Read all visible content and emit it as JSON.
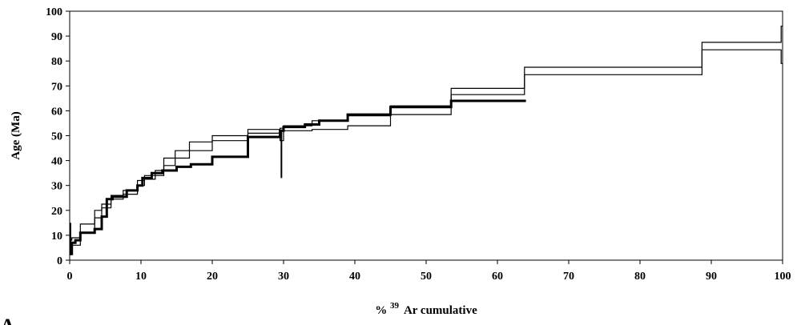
{
  "chart_data": {
    "type": "line",
    "xlabel_prefix": "%",
    "xlabel_sup": "39",
    "xlabel_rest": "Ar cumulative",
    "ylabel": "Age (Ma)",
    "panel_label": "A",
    "xlim": [
      0,
      100
    ],
    "ylim": [
      0,
      100
    ],
    "x_ticks": [
      0,
      10,
      20,
      30,
      40,
      50,
      60,
      70,
      80,
      90,
      100
    ],
    "y_ticks": [
      0,
      10,
      20,
      30,
      40,
      50,
      60,
      70,
      80,
      90,
      100
    ],
    "grid": false,
    "series": [
      {
        "style": "thin-upper",
        "steps": [
          {
            "x0": 0.0,
            "x1": 0.3,
            "y": 8
          },
          {
            "x0": 0.3,
            "x1": 1.5,
            "y": 9
          },
          {
            "x0": 1.5,
            "x1": 3.5,
            "y": 14.5
          },
          {
            "x0": 3.5,
            "x1": 4.5,
            "y": 20
          },
          {
            "x0": 4.5,
            "x1": 5.8,
            "y": 22.5
          },
          {
            "x0": 5.8,
            "x1": 7.5,
            "y": 26
          },
          {
            "x0": 7.5,
            "x1": 9.5,
            "y": 28
          },
          {
            "x0": 9.5,
            "x1": 10.5,
            "y": 32
          },
          {
            "x0": 10.5,
            "x1": 12.0,
            "y": 34
          },
          {
            "x0": 12.0,
            "x1": 13.2,
            "y": 36
          },
          {
            "x0": 13.2,
            "x1": 14.8,
            "y": 41
          },
          {
            "x0": 14.8,
            "x1": 16.8,
            "y": 44
          },
          {
            "x0": 16.8,
            "x1": 20.0,
            "y": 47.5
          },
          {
            "x0": 20.0,
            "x1": 25.0,
            "y": 50
          },
          {
            "x0": 25.0,
            "x1": 29.5,
            "y": 52.5
          },
          {
            "x0": 29.5,
            "x1": 30.0,
            "y": 53
          },
          {
            "x0": 30.0,
            "x1": 34.0,
            "y": 54
          },
          {
            "x0": 34.0,
            "x1": 39.0,
            "y": 56
          },
          {
            "x0": 39.0,
            "x1": 45.0,
            "y": 58
          },
          {
            "x0": 45.0,
            "x1": 53.5,
            "y": 62
          },
          {
            "x0": 53.5,
            "x1": 63.8,
            "y": 69
          },
          {
            "x0": 63.8,
            "x1": 88.7,
            "y": 77.5
          },
          {
            "x0": 88.7,
            "x1": 99.8,
            "y": 87.5
          },
          {
            "x0": 99.8,
            "x1": 100.0,
            "y": 94
          }
        ]
      },
      {
        "style": "thin-lower",
        "steps": [
          {
            "x0": 0.0,
            "x1": 0.3,
            "y": 4
          },
          {
            "x0": 0.3,
            "x1": 1.5,
            "y": 6
          },
          {
            "x0": 1.5,
            "x1": 3.5,
            "y": 11
          },
          {
            "x0": 3.5,
            "x1": 4.5,
            "y": 17
          },
          {
            "x0": 4.5,
            "x1": 5.8,
            "y": 21
          },
          {
            "x0": 5.8,
            "x1": 7.5,
            "y": 24.5
          },
          {
            "x0": 7.5,
            "x1": 9.5,
            "y": 26.5
          },
          {
            "x0": 9.5,
            "x1": 10.5,
            "y": 30
          },
          {
            "x0": 10.5,
            "x1": 12.0,
            "y": 32.5
          },
          {
            "x0": 12.0,
            "x1": 13.2,
            "y": 34
          },
          {
            "x0": 13.2,
            "x1": 14.8,
            "y": 38
          },
          {
            "x0": 14.8,
            "x1": 16.8,
            "y": 41
          },
          {
            "x0": 16.8,
            "x1": 20.0,
            "y": 44
          },
          {
            "x0": 20.0,
            "x1": 25.0,
            "y": 48
          },
          {
            "x0": 25.0,
            "x1": 29.5,
            "y": 51
          },
          {
            "x0": 29.5,
            "x1": 30.0,
            "y": 48
          },
          {
            "x0": 30.0,
            "x1": 34.0,
            "y": 52
          },
          {
            "x0": 34.0,
            "x1": 39.0,
            "y": 52.5
          },
          {
            "x0": 39.0,
            "x1": 45.0,
            "y": 54
          },
          {
            "x0": 45.0,
            "x1": 53.5,
            "y": 58.5
          },
          {
            "x0": 53.5,
            "x1": 63.8,
            "y": 66.5
          },
          {
            "x0": 63.8,
            "x1": 88.7,
            "y": 74.5
          },
          {
            "x0": 88.7,
            "x1": 99.8,
            "y": 84.5
          },
          {
            "x0": 99.8,
            "x1": 100.0,
            "y": 79
          }
        ]
      },
      {
        "style": "thick",
        "steps": [
          {
            "x0": 0.0,
            "x1": 0.3,
            "y": 2.5
          },
          {
            "x0": 0.3,
            "x1": 0.8,
            "y": 7
          },
          {
            "x0": 0.8,
            "x1": 1.5,
            "y": 8
          },
          {
            "x0": 1.5,
            "x1": 3.5,
            "y": 11
          },
          {
            "x0": 3.5,
            "x1": 4.5,
            "y": 12.5
          },
          {
            "x0": 4.5,
            "x1": 5.2,
            "y": 17.5
          },
          {
            "x0": 5.2,
            "x1": 6.0,
            "y": 24.5
          },
          {
            "x0": 6.0,
            "x1": 8.0,
            "y": 25.5
          },
          {
            "x0": 8.0,
            "x1": 9.5,
            "y": 28
          },
          {
            "x0": 9.5,
            "x1": 10.2,
            "y": 30
          },
          {
            "x0": 10.2,
            "x1": 11.5,
            "y": 33
          },
          {
            "x0": 11.5,
            "x1": 13.0,
            "y": 35
          },
          {
            "x0": 13.0,
            "x1": 15.0,
            "y": 36
          },
          {
            "x0": 15.0,
            "x1": 17.0,
            "y": 37.5
          },
          {
            "x0": 17.0,
            "x1": 20.0,
            "y": 38.5
          },
          {
            "x0": 20.0,
            "x1": 25.0,
            "y": 41.5
          },
          {
            "x0": 25.0,
            "x1": 29.5,
            "y": 49.5
          },
          {
            "x0": 29.5,
            "x1": 30.0,
            "y": 52
          },
          {
            "x0": 30.0,
            "x1": 33.0,
            "y": 53.5
          },
          {
            "x0": 33.0,
            "x1": 35.0,
            "y": 54.5
          },
          {
            "x0": 35.0,
            "x1": 39.0,
            "y": 56
          },
          {
            "x0": 39.0,
            "x1": 45.0,
            "y": 58.5
          },
          {
            "x0": 45.0,
            "x1": 53.5,
            "y": 61.5
          },
          {
            "x0": 53.5,
            "x1": 64.0,
            "y": 64
          }
        ],
        "error_bars": [
          {
            "x": 0.1,
            "y_min": 2,
            "y_max": 15
          },
          {
            "x": 29.7,
            "y_min": 33,
            "y_max": 52
          }
        ]
      }
    ]
  }
}
